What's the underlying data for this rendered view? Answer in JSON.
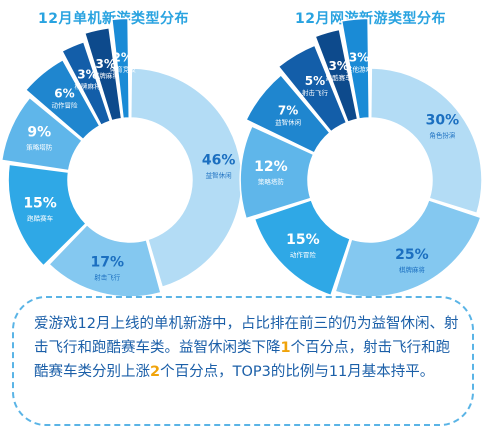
{
  "chart_data": [
    {
      "type": "pie",
      "title": "12月单机新游类型分布",
      "slices": [
        {
          "label": "益智休闲",
          "value": 46,
          "color": "#b3dcf5"
        },
        {
          "label": "射击飞行",
          "value": 17,
          "color": "#84c8f0"
        },
        {
          "label": "跑酷赛车",
          "value": 15,
          "color": "#2fa8e6"
        },
        {
          "label": "策略塔防",
          "value": 9,
          "color": "#5fb6ea"
        },
        {
          "label": "动作冒险",
          "value": 6,
          "color": "#1f86cf"
        },
        {
          "label": "棋牌麻将",
          "value": 3,
          "color": "#135ea9"
        },
        {
          "label": "棋牌麻将",
          "value": 3,
          "color": "#0d4a8c"
        },
        {
          "label": "体育竞技",
          "value": 2,
          "color": "#1a8bd6"
        }
      ]
    },
    {
      "type": "pie",
      "title": "12月网游新游类型分布",
      "slices": [
        {
          "label": "角色扮演",
          "value": 30,
          "color": "#b3dcf5"
        },
        {
          "label": "棋牌麻将",
          "value": 25,
          "color": "#84c8f0"
        },
        {
          "label": "动作冒险",
          "value": 15,
          "color": "#2fa8e6"
        },
        {
          "label": "策略塔防",
          "value": 12,
          "color": "#5fb6ea"
        },
        {
          "label": "益智休闲",
          "value": 7,
          "color": "#1f86cf"
        },
        {
          "label": "射击飞行",
          "value": 5,
          "color": "#135ea9"
        },
        {
          "label": "跑酷赛车",
          "value": 3,
          "color": "#0d4a8c"
        },
        {
          "label": "其他游戏",
          "value": 3,
          "color": "#1a8bd6"
        }
      ]
    }
  ],
  "summary": {
    "line1": "爱游戏12月上线的单机新游中，占比排在前三的仍为益智休",
    "line2": "闲、射击飞行和跑酷赛车类。益智休闲类下降",
    "num1": "1",
    "line2b": "个百分点，射击",
    "line3": "飞行和跑酷赛车类分别上涨",
    "num2": "2",
    "line3b": "个百分点，TOP3的比例与11月基",
    "line4": "本持平。"
  }
}
